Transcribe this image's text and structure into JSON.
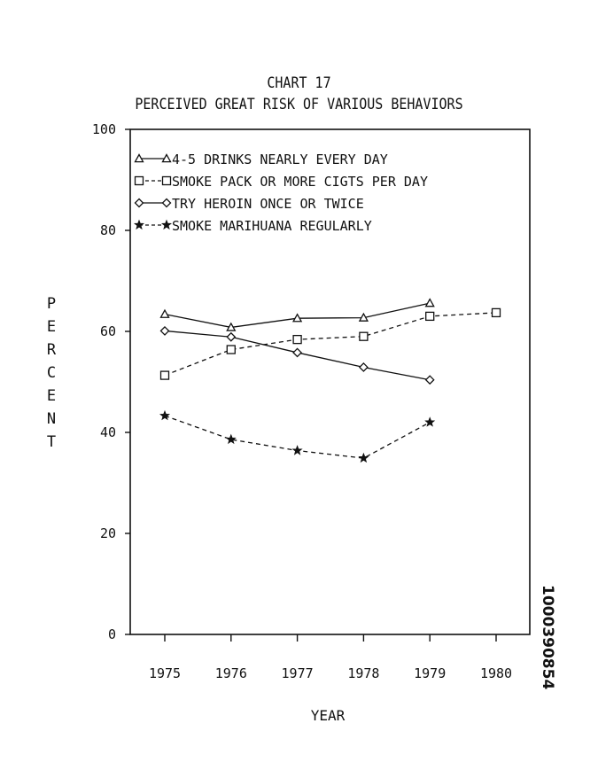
{
  "header": {
    "title": "CHART 17",
    "subtitle": "PERCEIVED GREAT RISK OF VARIOUS BEHAVIORS"
  },
  "document_id": "1000390854",
  "chart_data": {
    "type": "line",
    "title": "CHART 17",
    "subtitle": "PERCEIVED GREAT RISK OF VARIOUS BEHAVIORS",
    "xlabel": "YEAR",
    "ylabel": "PERCENT",
    "categories": [
      "1975",
      "1976",
      "1977",
      "1978",
      "1979",
      "1980"
    ],
    "ylim": [
      0,
      100
    ],
    "yticks": [
      "0",
      "20",
      "40",
      "60",
      "80",
      "100"
    ],
    "legend_position": "top-left",
    "grid": false,
    "series": [
      {
        "name": "4-5 DRINKS NEARLY EVERY DAY",
        "marker": "triangle",
        "line": "solid",
        "values": [
          63.4,
          60.8,
          62.6,
          62.7,
          65.6,
          null
        ]
      },
      {
        "name": "SMOKE PACK OR MORE CIGTS PER DAY",
        "marker": "square",
        "line": "dashed",
        "values": [
          51.3,
          56.4,
          58.4,
          59.0,
          63.0,
          63.7
        ]
      },
      {
        "name": "TRY HEROIN ONCE OR TWICE",
        "marker": "diamond",
        "line": "solid",
        "values": [
          60.1,
          58.9,
          55.8,
          52.9,
          50.4,
          null
        ]
      },
      {
        "name": "SMOKE MARIHUANA REGULARLY",
        "marker": "star",
        "line": "dashed",
        "values": [
          43.3,
          38.6,
          36.4,
          34.9,
          42.0,
          null
        ]
      }
    ]
  }
}
